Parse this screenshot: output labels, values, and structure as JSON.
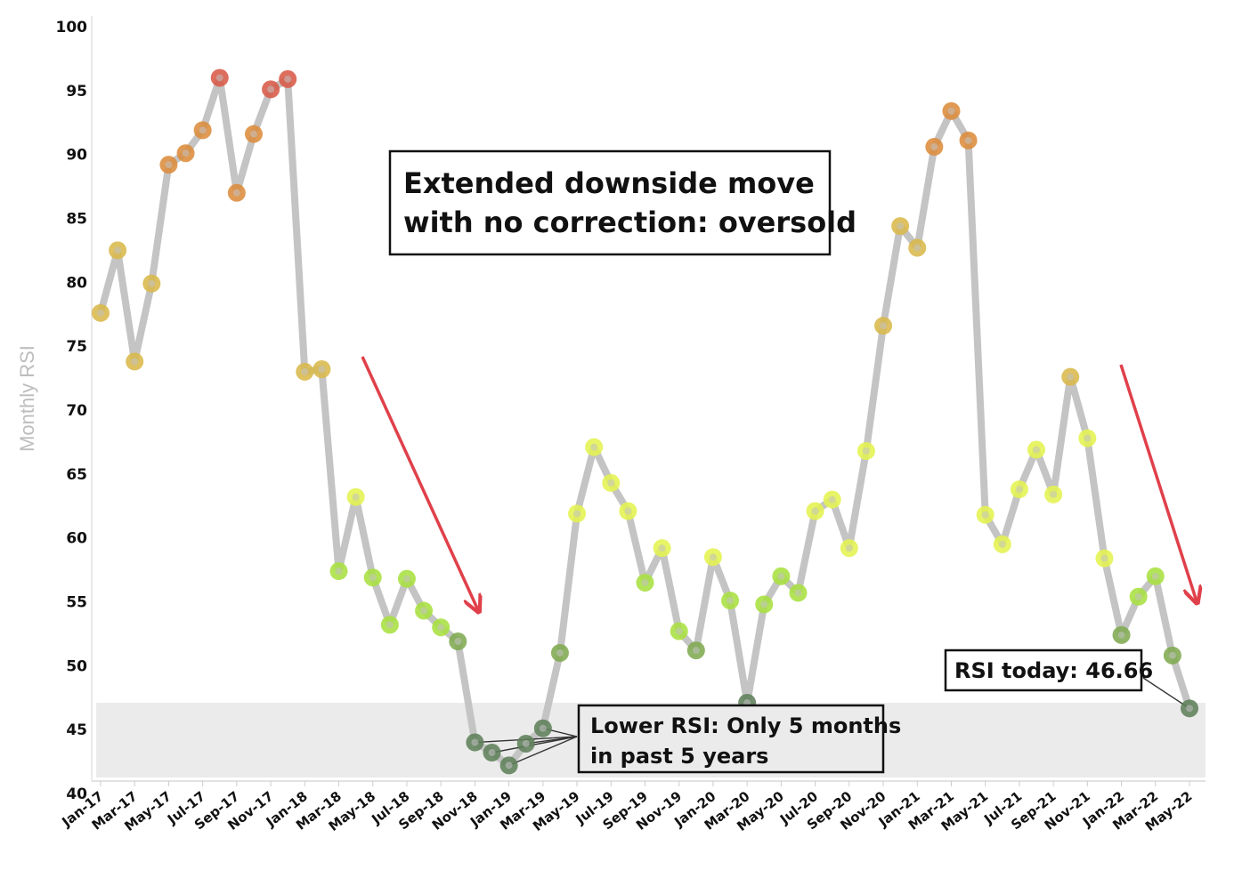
{
  "chart_data": {
    "type": "line",
    "ylabel": "Monthly RSI",
    "xlabel": "",
    "ylim": [
      40,
      100
    ],
    "yticks": [
      40,
      45,
      50,
      55,
      60,
      65,
      70,
      75,
      80,
      85,
      90,
      95,
      100
    ],
    "categories": [
      "Jan-17",
      "Feb-17",
      "Mar-17",
      "Apr-17",
      "May-17",
      "Jun-17",
      "Jul-17",
      "Aug-17",
      "Sep-17",
      "Oct-17",
      "Nov-17",
      "Dec-17",
      "Jan-18",
      "Feb-18",
      "Mar-18",
      "Apr-18",
      "May-18",
      "Jun-18",
      "Jul-18",
      "Aug-18",
      "Sep-18",
      "Oct-18",
      "Nov-18",
      "Dec-18",
      "Jan-19",
      "Feb-19",
      "Mar-19",
      "Apr-19",
      "May-19",
      "Jun-19",
      "Jul-19",
      "Aug-19",
      "Sep-19",
      "Oct-19",
      "Nov-19",
      "Dec-19",
      "Jan-20",
      "Feb-20",
      "Mar-20",
      "Apr-20",
      "May-20",
      "Jun-20",
      "Jul-20",
      "Aug-20",
      "Sep-20",
      "Oct-20",
      "Nov-20",
      "Dec-20",
      "Jan-21",
      "Feb-21",
      "Mar-21",
      "Apr-21",
      "May-21",
      "Jun-21",
      "Jul-21",
      "Aug-21",
      "Sep-21",
      "Oct-21",
      "Nov-21",
      "Dec-21",
      "Jan-22",
      "Feb-22",
      "Mar-22",
      "Apr-22",
      "May-22"
    ],
    "tick_labels": [
      "Jan-17",
      "Mar-17",
      "May-17",
      "Jul-17",
      "Sep-17",
      "Nov-17",
      "Jan-18",
      "Mar-18",
      "May-18",
      "Jul-18",
      "Sep-18",
      "Nov-18",
      "Jan-19",
      "Mar-19",
      "May-19",
      "Jul-19",
      "Sep-19",
      "Nov-19",
      "Jan-20",
      "Mar-20",
      "May-20",
      "Jul-20",
      "Sep-20",
      "Nov-20",
      "Jan-21",
      "Mar-21",
      "May-21",
      "Jul-21",
      "Sep-21",
      "Nov-21",
      "Jan-22",
      "Mar-22",
      "May-22"
    ],
    "series": [
      {
        "values": [
          77.6,
          82.5,
          73.8,
          79.9,
          89.2,
          90.1,
          91.9,
          96.0,
          87.0,
          91.6,
          95.1,
          95.9,
          73.0,
          73.2,
          57.4,
          63.2,
          56.9,
          53.2,
          56.8,
          54.3,
          53.0,
          51.9,
          44.0,
          43.2,
          42.2,
          43.9,
          45.1,
          51.0,
          61.9,
          67.1,
          64.3,
          62.1,
          56.5,
          59.2,
          52.7,
          51.2,
          58.5,
          55.1,
          47.1,
          54.8,
          57.0,
          55.7,
          62.1,
          63.0,
          59.2,
          66.8,
          76.6,
          84.4,
          82.7,
          90.6,
          93.4,
          91.1,
          61.8,
          59.5,
          63.8,
          66.9,
          63.4,
          72.6,
          67.8,
          58.4,
          52.4,
          55.4,
          57.0,
          50.8,
          46.66
        ]
      }
    ],
    "colors": {
      "line": "#c4c4c4",
      "oversold_band": "#ebebeb",
      "arrow": "#e0404a",
      "marker_scale": [
        "#5f7f5a",
        "#7faa50",
        "#a8e040",
        "#e4f250",
        "#d9b84a",
        "#dc8c3c",
        "#d85a48"
      ]
    }
  },
  "annotations": {
    "oversold_line1": "Extended downside move",
    "oversold_line2": "with no correction: oversold",
    "lower_line1": "Lower RSI: Only 5 months",
    "lower_line2": "in past 5 years",
    "today": "RSI today: 46.66"
  }
}
